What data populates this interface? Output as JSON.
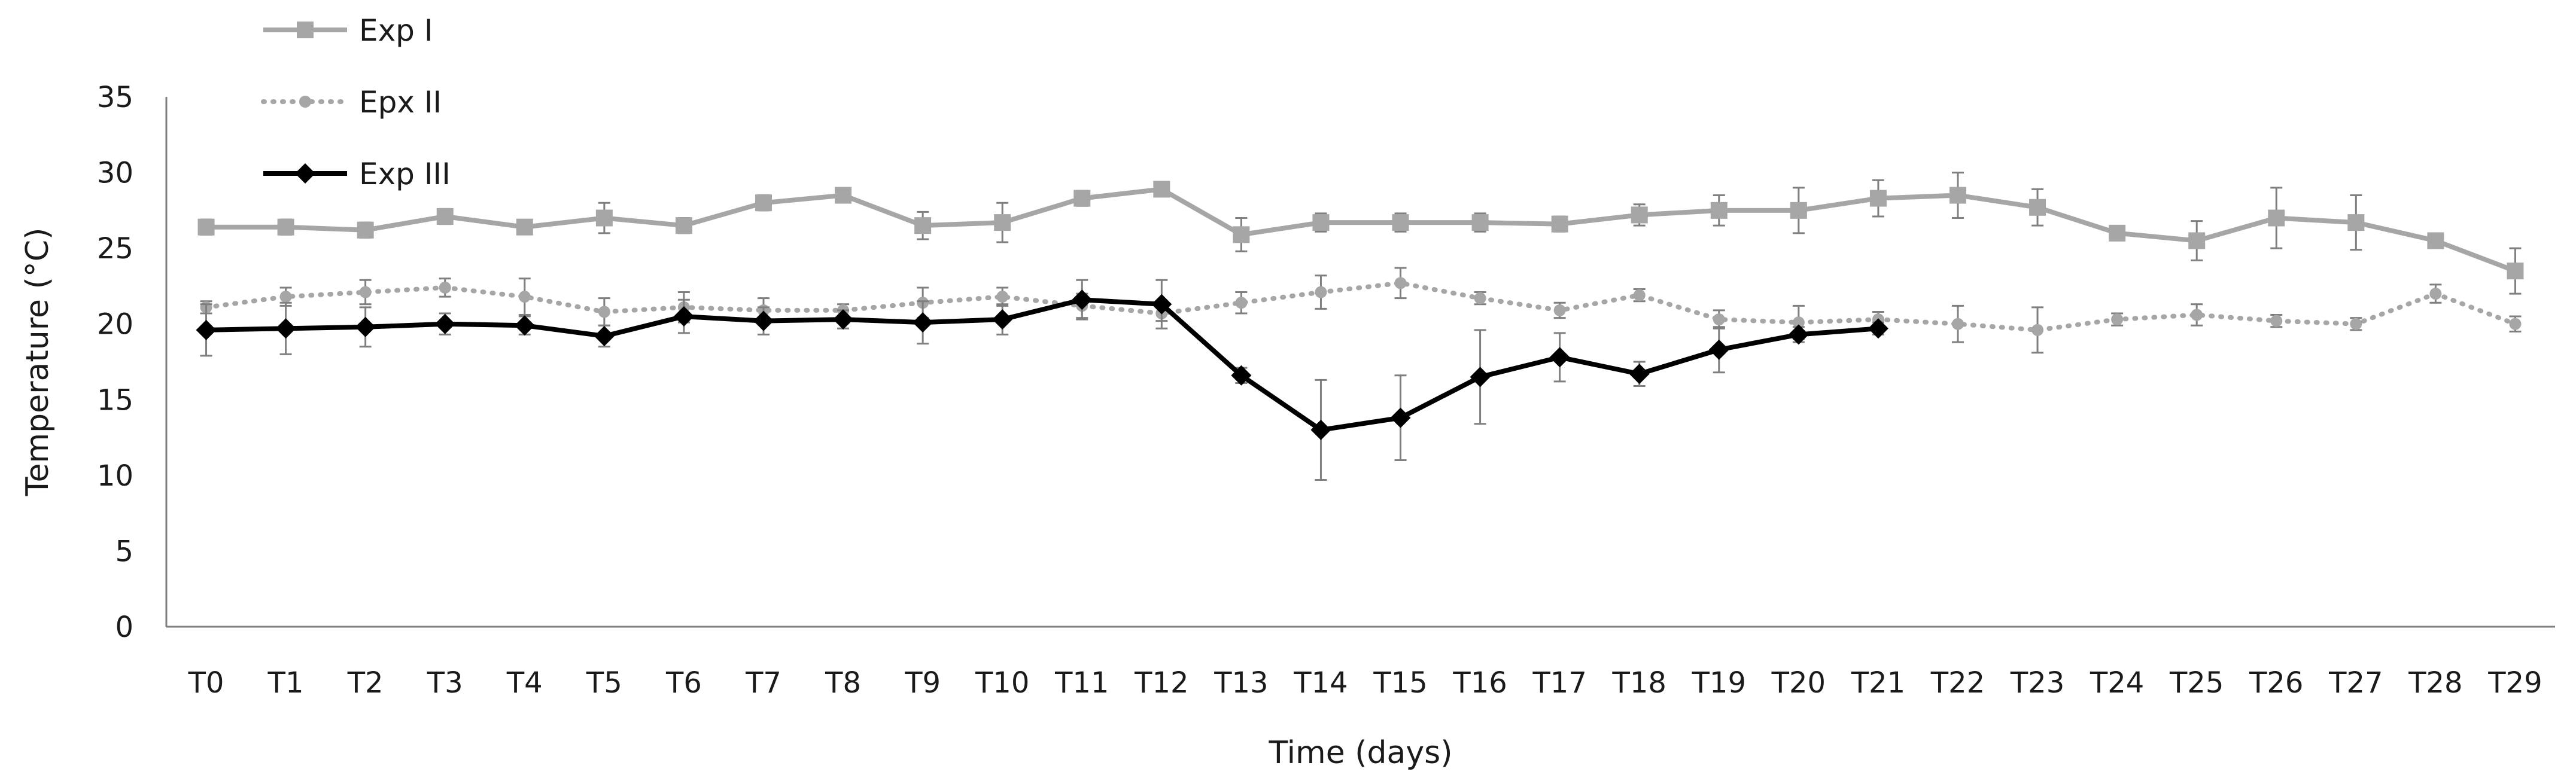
{
  "chart_data": {
    "type": "line",
    "xlabel": "Time (days)",
    "ylabel": "Temperature (°C)",
    "ylim": [
      0,
      35
    ],
    "yticks": [
      0,
      5,
      10,
      15,
      20,
      25,
      30,
      35
    ],
    "grid": false,
    "legend": "top-left",
    "categories": [
      "T0",
      "T1",
      "T2",
      "T3",
      "T4",
      "T5",
      "T6",
      "T7",
      "T8",
      "T9",
      "T10",
      "T11",
      "T12",
      "T13",
      "T14",
      "T15",
      "T16",
      "T17",
      "T18",
      "T19",
      "T20",
      "T21",
      "T22",
      "T23",
      "T24",
      "T25",
      "T26",
      "T27",
      "T28",
      "T29"
    ],
    "series": [
      {
        "name": "Exp I",
        "color": "#a6a6a6",
        "marker": "square",
        "line": "solid",
        "values": [
          26.4,
          26.4,
          26.2,
          27.1,
          26.4,
          27.0,
          26.5,
          28.0,
          28.5,
          26.5,
          26.7,
          28.3,
          28.9,
          25.9,
          26.7,
          26.7,
          26.7,
          26.6,
          27.2,
          27.5,
          27.5,
          28.3,
          28.5,
          27.7,
          26.0,
          25.5,
          27.0,
          26.7,
          25.5,
          23.5
        ],
        "errors": [
          0.5,
          0.5,
          0.5,
          0.5,
          0.4,
          1.0,
          0.5,
          0.5,
          0.4,
          0.9,
          1.3,
          0.5,
          0.4,
          1.1,
          0.6,
          0.6,
          0.6,
          0.5,
          0.7,
          1.0,
          1.5,
          1.2,
          1.5,
          1.2,
          0.4,
          1.3,
          2.0,
          1.8,
          0.4,
          1.5
        ]
      },
      {
        "name": "Epx II",
        "color": "#a6a6a6",
        "marker": "circle",
        "line": "dotted",
        "values": [
          21.1,
          21.8,
          22.1,
          22.4,
          21.8,
          20.8,
          21.1,
          20.9,
          20.9,
          21.4,
          21.8,
          21.2,
          20.7,
          21.4,
          22.1,
          22.7,
          21.7,
          20.9,
          21.9,
          20.3,
          20.1,
          20.3,
          20.0,
          19.6,
          20.3,
          20.6,
          20.2,
          20.0,
          22.0,
          20.0
        ],
        "errors": [
          0.4,
          0.6,
          0.8,
          0.6,
          1.2,
          0.9,
          1.0,
          0.8,
          0.4,
          1.0,
          0.6,
          0.8,
          0.5,
          0.7,
          1.1,
          1.0,
          0.4,
          0.5,
          0.4,
          0.6,
          1.1,
          0.5,
          1.2,
          1.5,
          0.4,
          0.7,
          0.4,
          0.4,
          0.6,
          0.5
        ]
      },
      {
        "name": "Exp III",
        "color": "#000000",
        "marker": "diamond",
        "line": "solid",
        "values": [
          19.6,
          19.7,
          19.8,
          20.0,
          19.9,
          19.2,
          20.5,
          20.2,
          20.3,
          20.1,
          20.3,
          21.6,
          21.3,
          16.6,
          13.0,
          13.8,
          16.5,
          17.8,
          16.7,
          18.3,
          19.3,
          19.7,
          null,
          null,
          null,
          null,
          null,
          null,
          null,
          null
        ],
        "errors": [
          1.7,
          1.7,
          1.3,
          0.7,
          0.6,
          0.7,
          1.1,
          0.9,
          0.6,
          1.4,
          1.0,
          1.3,
          1.6,
          0.5,
          3.3,
          2.8,
          3.1,
          1.6,
          0.8,
          1.5,
          0.5,
          0.4,
          null,
          null,
          null,
          null,
          null,
          null,
          null,
          null
        ]
      }
    ]
  }
}
